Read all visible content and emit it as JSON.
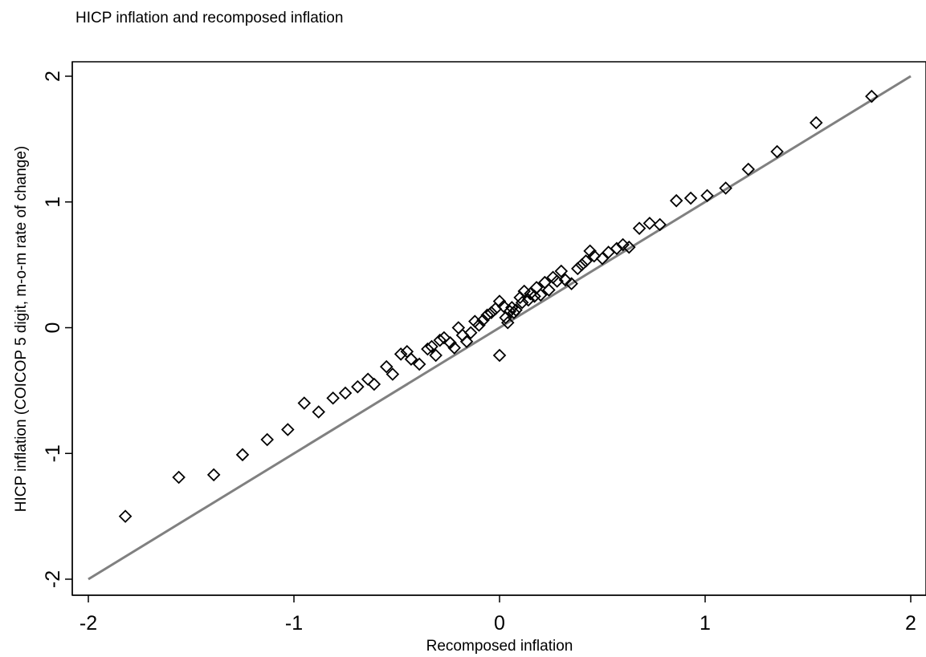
{
  "chart_data": {
    "type": "scatter",
    "title": "HICP inflation and recomposed inflation",
    "xlabel": "Recomposed inflation",
    "ylabel": "HICP inflation (COICOP 5 digit, m-o-m rate of change)",
    "xlim": [
      -2,
      2
    ],
    "ylim": [
      -2,
      2
    ],
    "xticks": [
      "-2",
      "-1",
      "0",
      "1",
      "2"
    ],
    "yticks": [
      "-2",
      "-1",
      "0",
      "1",
      "2"
    ],
    "grid": false,
    "marker": "diamond-hollow",
    "reference_line": {
      "x": [
        -2,
        2
      ],
      "y": [
        -2,
        2
      ],
      "color": "#808080"
    },
    "series": [
      {
        "points": [
          [
            -1.82,
            -1.5
          ],
          [
            -1.56,
            -1.19
          ],
          [
            -1.39,
            -1.17
          ],
          [
            -1.25,
            -1.01
          ],
          [
            -1.13,
            -0.89
          ],
          [
            -1.03,
            -0.81
          ],
          [
            -0.95,
            -0.6
          ],
          [
            -0.88,
            -0.67
          ],
          [
            -0.81,
            -0.56
          ],
          [
            -0.75,
            -0.52
          ],
          [
            -0.69,
            -0.47
          ],
          [
            -0.64,
            -0.41
          ],
          [
            -0.61,
            -0.45
          ],
          [
            -0.55,
            -0.31
          ],
          [
            -0.52,
            -0.37
          ],
          [
            -0.48,
            -0.21
          ],
          [
            -0.45,
            -0.19
          ],
          [
            -0.43,
            -0.25
          ],
          [
            -0.39,
            -0.29
          ],
          [
            -0.35,
            -0.17
          ],
          [
            -0.33,
            -0.15
          ],
          [
            -0.31,
            -0.22
          ],
          [
            -0.29,
            -0.1
          ],
          [
            -0.27,
            -0.08
          ],
          [
            -0.24,
            -0.12
          ],
          [
            -0.22,
            -0.16
          ],
          [
            -0.2,
            0.0
          ],
          [
            -0.18,
            -0.06
          ],
          [
            -0.16,
            -0.11
          ],
          [
            -0.14,
            -0.04
          ],
          [
            -0.12,
            0.05
          ],
          [
            -0.1,
            0.02
          ],
          [
            -0.08,
            0.06
          ],
          [
            -0.06,
            0.1
          ],
          [
            -0.04,
            0.12
          ],
          [
            -0.02,
            0.15
          ],
          [
            0.0,
            0.21
          ],
          [
            0.0,
            -0.22
          ],
          [
            0.02,
            0.17
          ],
          [
            0.03,
            0.08
          ],
          [
            0.04,
            0.04
          ],
          [
            0.05,
            0.13
          ],
          [
            0.06,
            0.16
          ],
          [
            0.07,
            0.12
          ],
          [
            0.08,
            0.14
          ],
          [
            0.1,
            0.24
          ],
          [
            0.11,
            0.2
          ],
          [
            0.12,
            0.29
          ],
          [
            0.14,
            0.22
          ],
          [
            0.15,
            0.27
          ],
          [
            0.17,
            0.25
          ],
          [
            0.18,
            0.32
          ],
          [
            0.2,
            0.26
          ],
          [
            0.22,
            0.36
          ],
          [
            0.24,
            0.3
          ],
          [
            0.26,
            0.4
          ],
          [
            0.28,
            0.37
          ],
          [
            0.3,
            0.45
          ],
          [
            0.32,
            0.38
          ],
          [
            0.35,
            0.35
          ],
          [
            0.38,
            0.47
          ],
          [
            0.4,
            0.5
          ],
          [
            0.42,
            0.53
          ],
          [
            0.44,
            0.61
          ],
          [
            0.46,
            0.57
          ],
          [
            0.5,
            0.55
          ],
          [
            0.53,
            0.6
          ],
          [
            0.57,
            0.63
          ],
          [
            0.6,
            0.66
          ],
          [
            0.63,
            0.64
          ],
          [
            0.68,
            0.79
          ],
          [
            0.73,
            0.83
          ],
          [
            0.78,
            0.82
          ],
          [
            0.86,
            1.01
          ],
          [
            0.93,
            1.03
          ],
          [
            1.01,
            1.05
          ],
          [
            1.1,
            1.11
          ],
          [
            1.21,
            1.26
          ],
          [
            1.35,
            1.4
          ],
          [
            1.54,
            1.63
          ],
          [
            1.81,
            1.84
          ]
        ]
      }
    ]
  }
}
